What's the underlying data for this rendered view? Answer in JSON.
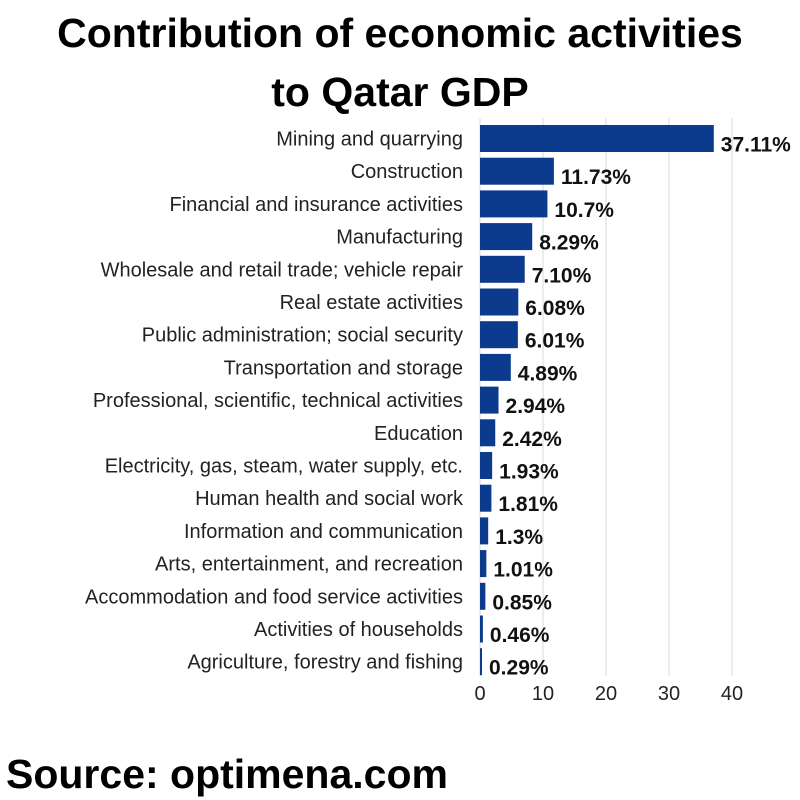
{
  "chart_data": {
    "type": "bar",
    "orientation": "horizontal",
    "title": [
      "Contribution of economic activities",
      "to Qatar GDP"
    ],
    "categories": [
      "Mining and quarrying",
      "Construction",
      "Financial and insurance activities",
      "Manufacturing",
      "Wholesale and retail trade; vehicle repair",
      "Real estate activities",
      "Public administration; social security",
      "Transportation and storage",
      "Professional, scientific, technical activities",
      "Education",
      "Electricity, gas, steam, water supply, etc.",
      "Human health and social work",
      "Information and communication",
      "Arts, entertainment, and recreation",
      "Accommodation and food service activities",
      "Activities of households",
      "Agriculture, forestry and fishing"
    ],
    "values": [
      37.11,
      11.73,
      10.7,
      8.29,
      7.1,
      6.08,
      6.01,
      4.89,
      2.94,
      2.42,
      1.93,
      1.81,
      1.3,
      1.01,
      0.85,
      0.46,
      0.29
    ],
    "data_labels": [
      "37.11%",
      "11.73%",
      "10.7%",
      "8.29%",
      "7.10%",
      "6.08%",
      "6.01%",
      "4.89%",
      "2.94%",
      "2.42%",
      "1.93%",
      "1.81%",
      "1.3%",
      "1.01%",
      "0.85%",
      "0.46%",
      "0.29%"
    ],
    "xticks": [
      0,
      10,
      20,
      30,
      40
    ],
    "xlim": [
      0,
      40
    ],
    "grid": "vertical",
    "bar_color": "#0c3a8c",
    "grid_color": "#d9d9d9"
  },
  "footer": {
    "source": "Source: optimena.com"
  }
}
